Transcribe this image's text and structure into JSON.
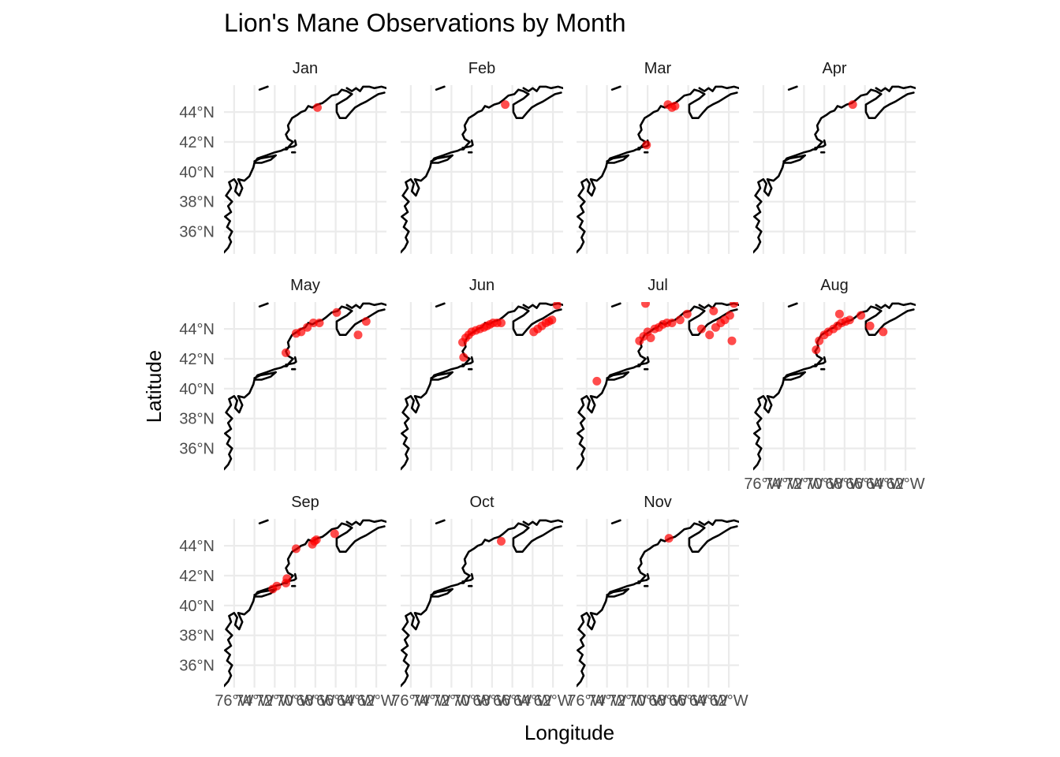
{
  "title": "Lion's Mane Observations by Month",
  "xlabel": "Longitude",
  "ylabel": "Latitude",
  "point_color": "#ff0000",
  "coastline_color": "#000000",
  "chart_data": {
    "type": "scatter",
    "facet_by": "month",
    "xlim": [
      -77,
      -61
    ],
    "ylim": [
      34.5,
      45.8
    ],
    "x_ticks": [
      -76,
      -74,
      -72,
      -70,
      -68,
      -66,
      -64,
      -62
    ],
    "x_tick_labels": [
      "76°W",
      "74°W",
      "72°W",
      "70°W",
      "68°W",
      "66°W",
      "64°W",
      "62°W"
    ],
    "y_ticks": [
      36,
      38,
      40,
      42,
      44
    ],
    "y_tick_labels": [
      "36°N",
      "38°N",
      "40°N",
      "42°N",
      "44°N"
    ],
    "grid": true,
    "facets": [
      {
        "label": "Jan",
        "points": [
          [
            -67.8,
            44.3
          ]
        ]
      },
      {
        "label": "Feb",
        "points": [
          [
            -66.7,
            44.5
          ]
        ]
      },
      {
        "label": "Mar",
        "points": [
          [
            -70.1,
            41.8
          ],
          [
            -68.0,
            44.5
          ],
          [
            -67.6,
            44.3
          ],
          [
            -67.3,
            44.4
          ]
        ]
      },
      {
        "label": "Apr",
        "points": [
          [
            -67.2,
            44.5
          ]
        ]
      },
      {
        "label": "May",
        "points": [
          [
            -70.9,
            42.4
          ],
          [
            -69.9,
            43.7
          ],
          [
            -69.4,
            43.8
          ],
          [
            -68.8,
            44.1
          ],
          [
            -68.2,
            44.4
          ],
          [
            -67.6,
            44.4
          ],
          [
            -65.9,
            45.1
          ],
          [
            -63.8,
            43.6
          ],
          [
            -63.0,
            44.5
          ]
        ]
      },
      {
        "label": "Jun",
        "points": [
          [
            -70.8,
            42.1
          ],
          [
            -70.9,
            43.1
          ],
          [
            -70.6,
            43.4
          ],
          [
            -70.3,
            43.6
          ],
          [
            -70.0,
            43.8
          ],
          [
            -69.6,
            43.9
          ],
          [
            -69.2,
            44.0
          ],
          [
            -68.8,
            44.1
          ],
          [
            -68.5,
            44.2
          ],
          [
            -68.2,
            44.3
          ],
          [
            -67.9,
            44.4
          ],
          [
            -67.5,
            44.4
          ],
          [
            -67.1,
            44.4
          ],
          [
            -63.9,
            43.8
          ],
          [
            -63.5,
            44.0
          ],
          [
            -63.1,
            44.2
          ],
          [
            -62.7,
            44.4
          ],
          [
            -62.4,
            44.5
          ],
          [
            -62.1,
            44.6
          ],
          [
            -61.6,
            45.6
          ]
        ]
      },
      {
        "label": "Jul",
        "points": [
          [
            -75.0,
            40.5
          ],
          [
            -70.2,
            45.7
          ],
          [
            -70.8,
            43.2
          ],
          [
            -70.4,
            43.5
          ],
          [
            -70.0,
            43.8
          ],
          [
            -69.7,
            43.4
          ],
          [
            -69.3,
            44.0
          ],
          [
            -68.9,
            44.1
          ],
          [
            -68.5,
            44.3
          ],
          [
            -68.1,
            44.4
          ],
          [
            -67.6,
            44.4
          ],
          [
            -66.8,
            44.6
          ],
          [
            -66.1,
            45.0
          ],
          [
            -64.7,
            44.0
          ],
          [
            -63.9,
            43.6
          ],
          [
            -63.3,
            44.1
          ],
          [
            -62.8,
            44.4
          ],
          [
            -62.4,
            44.6
          ],
          [
            -61.9,
            44.9
          ],
          [
            -61.7,
            43.2
          ],
          [
            -61.5,
            45.7
          ],
          [
            -63.5,
            45.2
          ]
        ]
      },
      {
        "label": "Aug",
        "points": [
          [
            -70.8,
            42.6
          ],
          [
            -70.5,
            43.2
          ],
          [
            -70.0,
            43.6
          ],
          [
            -69.6,
            43.8
          ],
          [
            -69.1,
            44.0
          ],
          [
            -68.7,
            44.2
          ],
          [
            -68.3,
            44.4
          ],
          [
            -67.9,
            44.5
          ],
          [
            -67.5,
            44.6
          ],
          [
            -68.5,
            45.0
          ],
          [
            -66.4,
            44.9
          ],
          [
            -65.5,
            44.2
          ],
          [
            -64.2,
            43.8
          ]
        ]
      },
      {
        "label": "Sep",
        "points": [
          [
            -72.2,
            41.1
          ],
          [
            -71.8,
            41.3
          ],
          [
            -70.9,
            41.5
          ],
          [
            -70.8,
            41.8
          ],
          [
            -69.9,
            43.8
          ],
          [
            -68.3,
            44.1
          ],
          [
            -68.1,
            44.3
          ],
          [
            -67.9,
            44.4
          ],
          [
            -66.1,
            44.8
          ]
        ]
      },
      {
        "label": "Oct",
        "points": [
          [
            -67.1,
            44.3
          ]
        ]
      },
      {
        "label": "Nov",
        "points": [
          [
            -67.9,
            44.5
          ]
        ]
      }
    ]
  }
}
